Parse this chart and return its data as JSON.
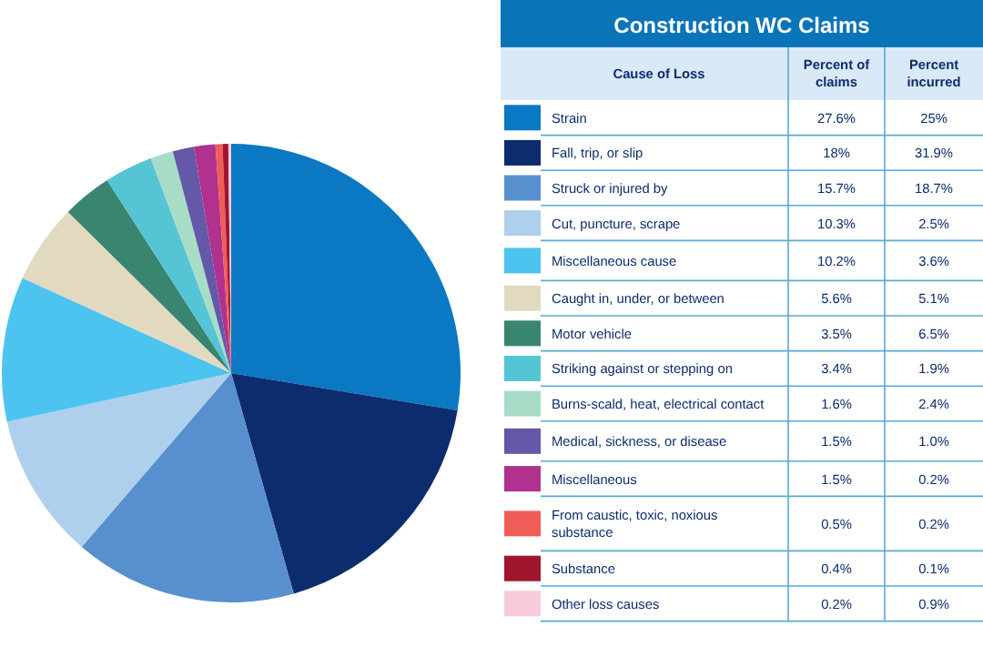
{
  "chart_data": [
    {
      "type": "pie",
      "title": "Construction WC Claims",
      "legend_title": "Cause of Loss",
      "categories": [
        "Strain",
        "Fall, trip, or slip",
        "Struck or injured by",
        "Cut, puncture, scrape",
        "Miscellaneous cause",
        "Caught in, under, or between",
        "Motor vehicle",
        "Striking against or stepping on",
        "Burns-scald, heat, electrical contact",
        "Medical, sickness, or disease",
        "Miscellaneous",
        "From caustic, toxic, noxious substance",
        "Substance",
        "Other loss causes"
      ],
      "colors": [
        "#0a78c2",
        "#0c2c6e",
        "#5890cf",
        "#aed0ec",
        "#4cc4ef",
        "#e2dac0",
        "#3a8570",
        "#55c4d4",
        "#a8dcc6",
        "#6458a8",
        "#b0318e",
        "#f05c58",
        "#a0162e",
        "#f8cadc"
      ],
      "series": [
        {
          "name": "Percent of claims",
          "values": [
            27.6,
            18,
            15.7,
            10.3,
            10.2,
            5.6,
            3.5,
            3.4,
            1.6,
            1.5,
            1.5,
            0.5,
            0.4,
            0.2
          ],
          "value_labels": [
            "27.6%",
            "18%",
            "15.7%",
            "10.3%",
            "10.2%",
            "5.6%",
            "3.5%",
            "3.4%",
            "1.6%",
            "1.5%",
            "1.5%",
            "0.5%",
            "0.4%",
            "0.2%"
          ]
        }
      ],
      "legend": "right"
    },
    {
      "type": "other",
      "series": [
        {
          "name": "Percent incurred",
          "values": [
            25,
            31.9,
            18.7,
            2.5,
            3.6,
            5.1,
            6.5,
            1.9,
            2.4,
            1.0,
            0.2,
            0.2,
            0.1,
            0.9
          ],
          "value_labels": [
            "25%",
            "31.9%",
            "18.7%",
            "2.5%",
            "3.6%",
            "5.1%",
            "6.5%",
            "1.9%",
            "2.4%",
            "1.0%",
            "0.2%",
            "0.2%",
            "0.1%",
            "0.9%"
          ]
        }
      ]
    }
  ]
}
